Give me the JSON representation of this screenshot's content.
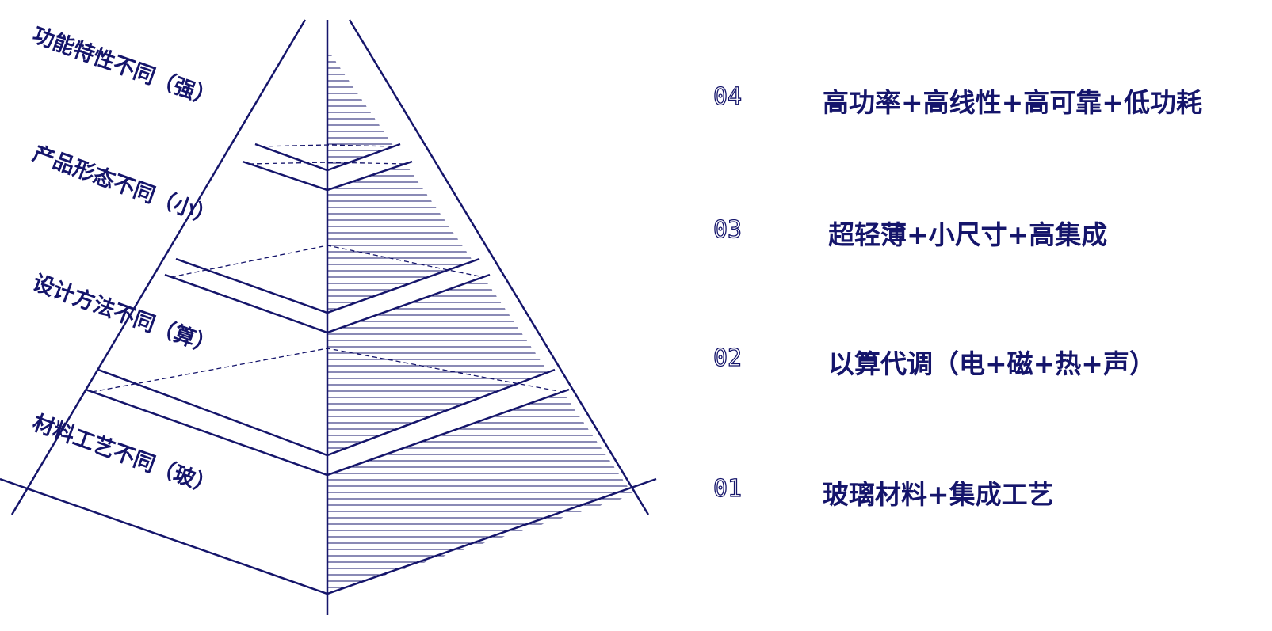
{
  "levels": [
    {
      "label": "功能特性不同（强）",
      "number": "04",
      "description": "高功率+高线性+高可靠+低功耗"
    },
    {
      "label": "产品形态不同（小）",
      "number": "03",
      "description": "超轻薄+小尺寸+高集成"
    },
    {
      "label": "设计方法不同（算）",
      "number": "02",
      "description": "以算代调（电+磁+热+声）"
    },
    {
      "label": "材料工艺不同（玻）",
      "number": "01",
      "description": "玻璃材料+集成工艺"
    }
  ]
}
